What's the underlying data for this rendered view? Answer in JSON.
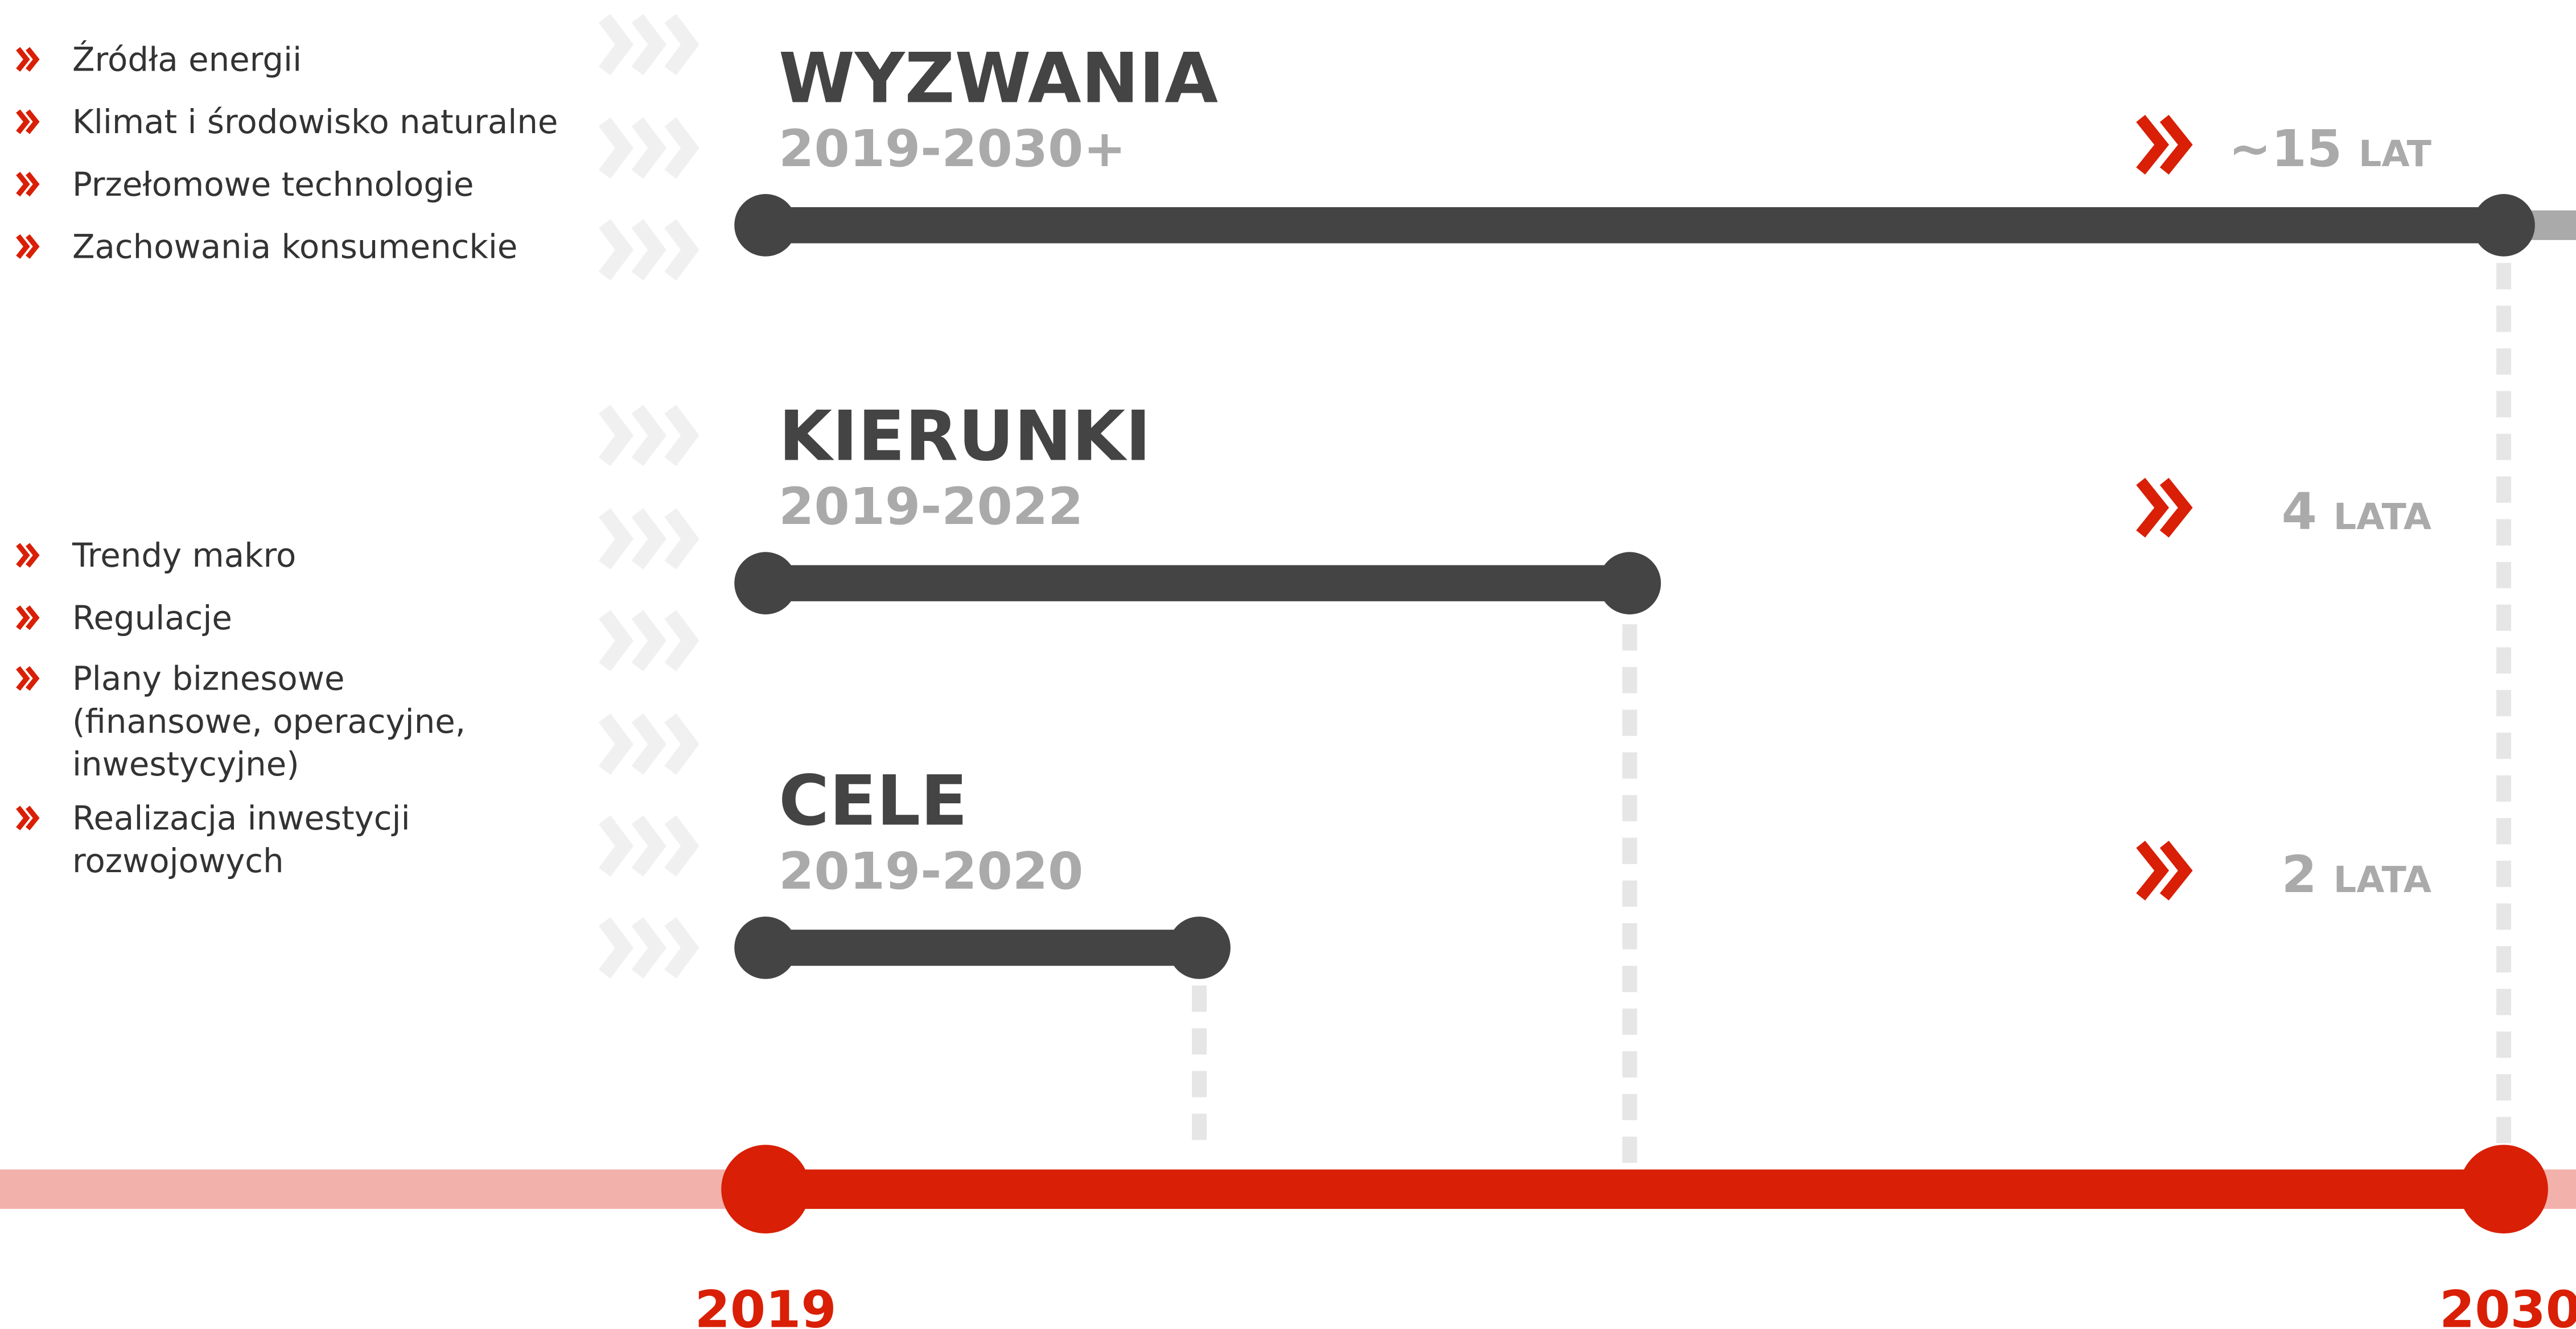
{
  "lists": [
    {
      "items": [
        {
          "lines": [
            "Źródła energii"
          ]
        },
        {
          "lines": [
            "Klimat i środowisko naturalne"
          ]
        },
        {
          "lines": [
            "Przełomowe technologie"
          ]
        },
        {
          "lines": [
            "Zachowania konsumenckie"
          ]
        }
      ]
    },
    {
      "items": [
        {
          "lines": [
            "Trendy makro"
          ]
        },
        {
          "lines": [
            "Regulacje"
          ]
        },
        {
          "lines": [
            "Plany biznesowe",
            "(finansowe, operacyjne,",
            "inwestycyjne)"
          ]
        },
        {
          "lines": [
            "Realizacja inwestycji",
            "rozwojowych"
          ]
        }
      ]
    }
  ],
  "sections": [
    {
      "title": "WYZWANIA",
      "range": "2019-2030+",
      "duration": "~15",
      "unit": "LAT"
    },
    {
      "title": "KIERUNKI",
      "range": "2019-2022",
      "duration": "4",
      "unit": "LATA"
    },
    {
      "title": "CELE",
      "range": "2019-2020",
      "duration": "2",
      "unit": "LATA"
    }
  ],
  "timeline": {
    "start": "2019",
    "end": "2030"
  }
}
